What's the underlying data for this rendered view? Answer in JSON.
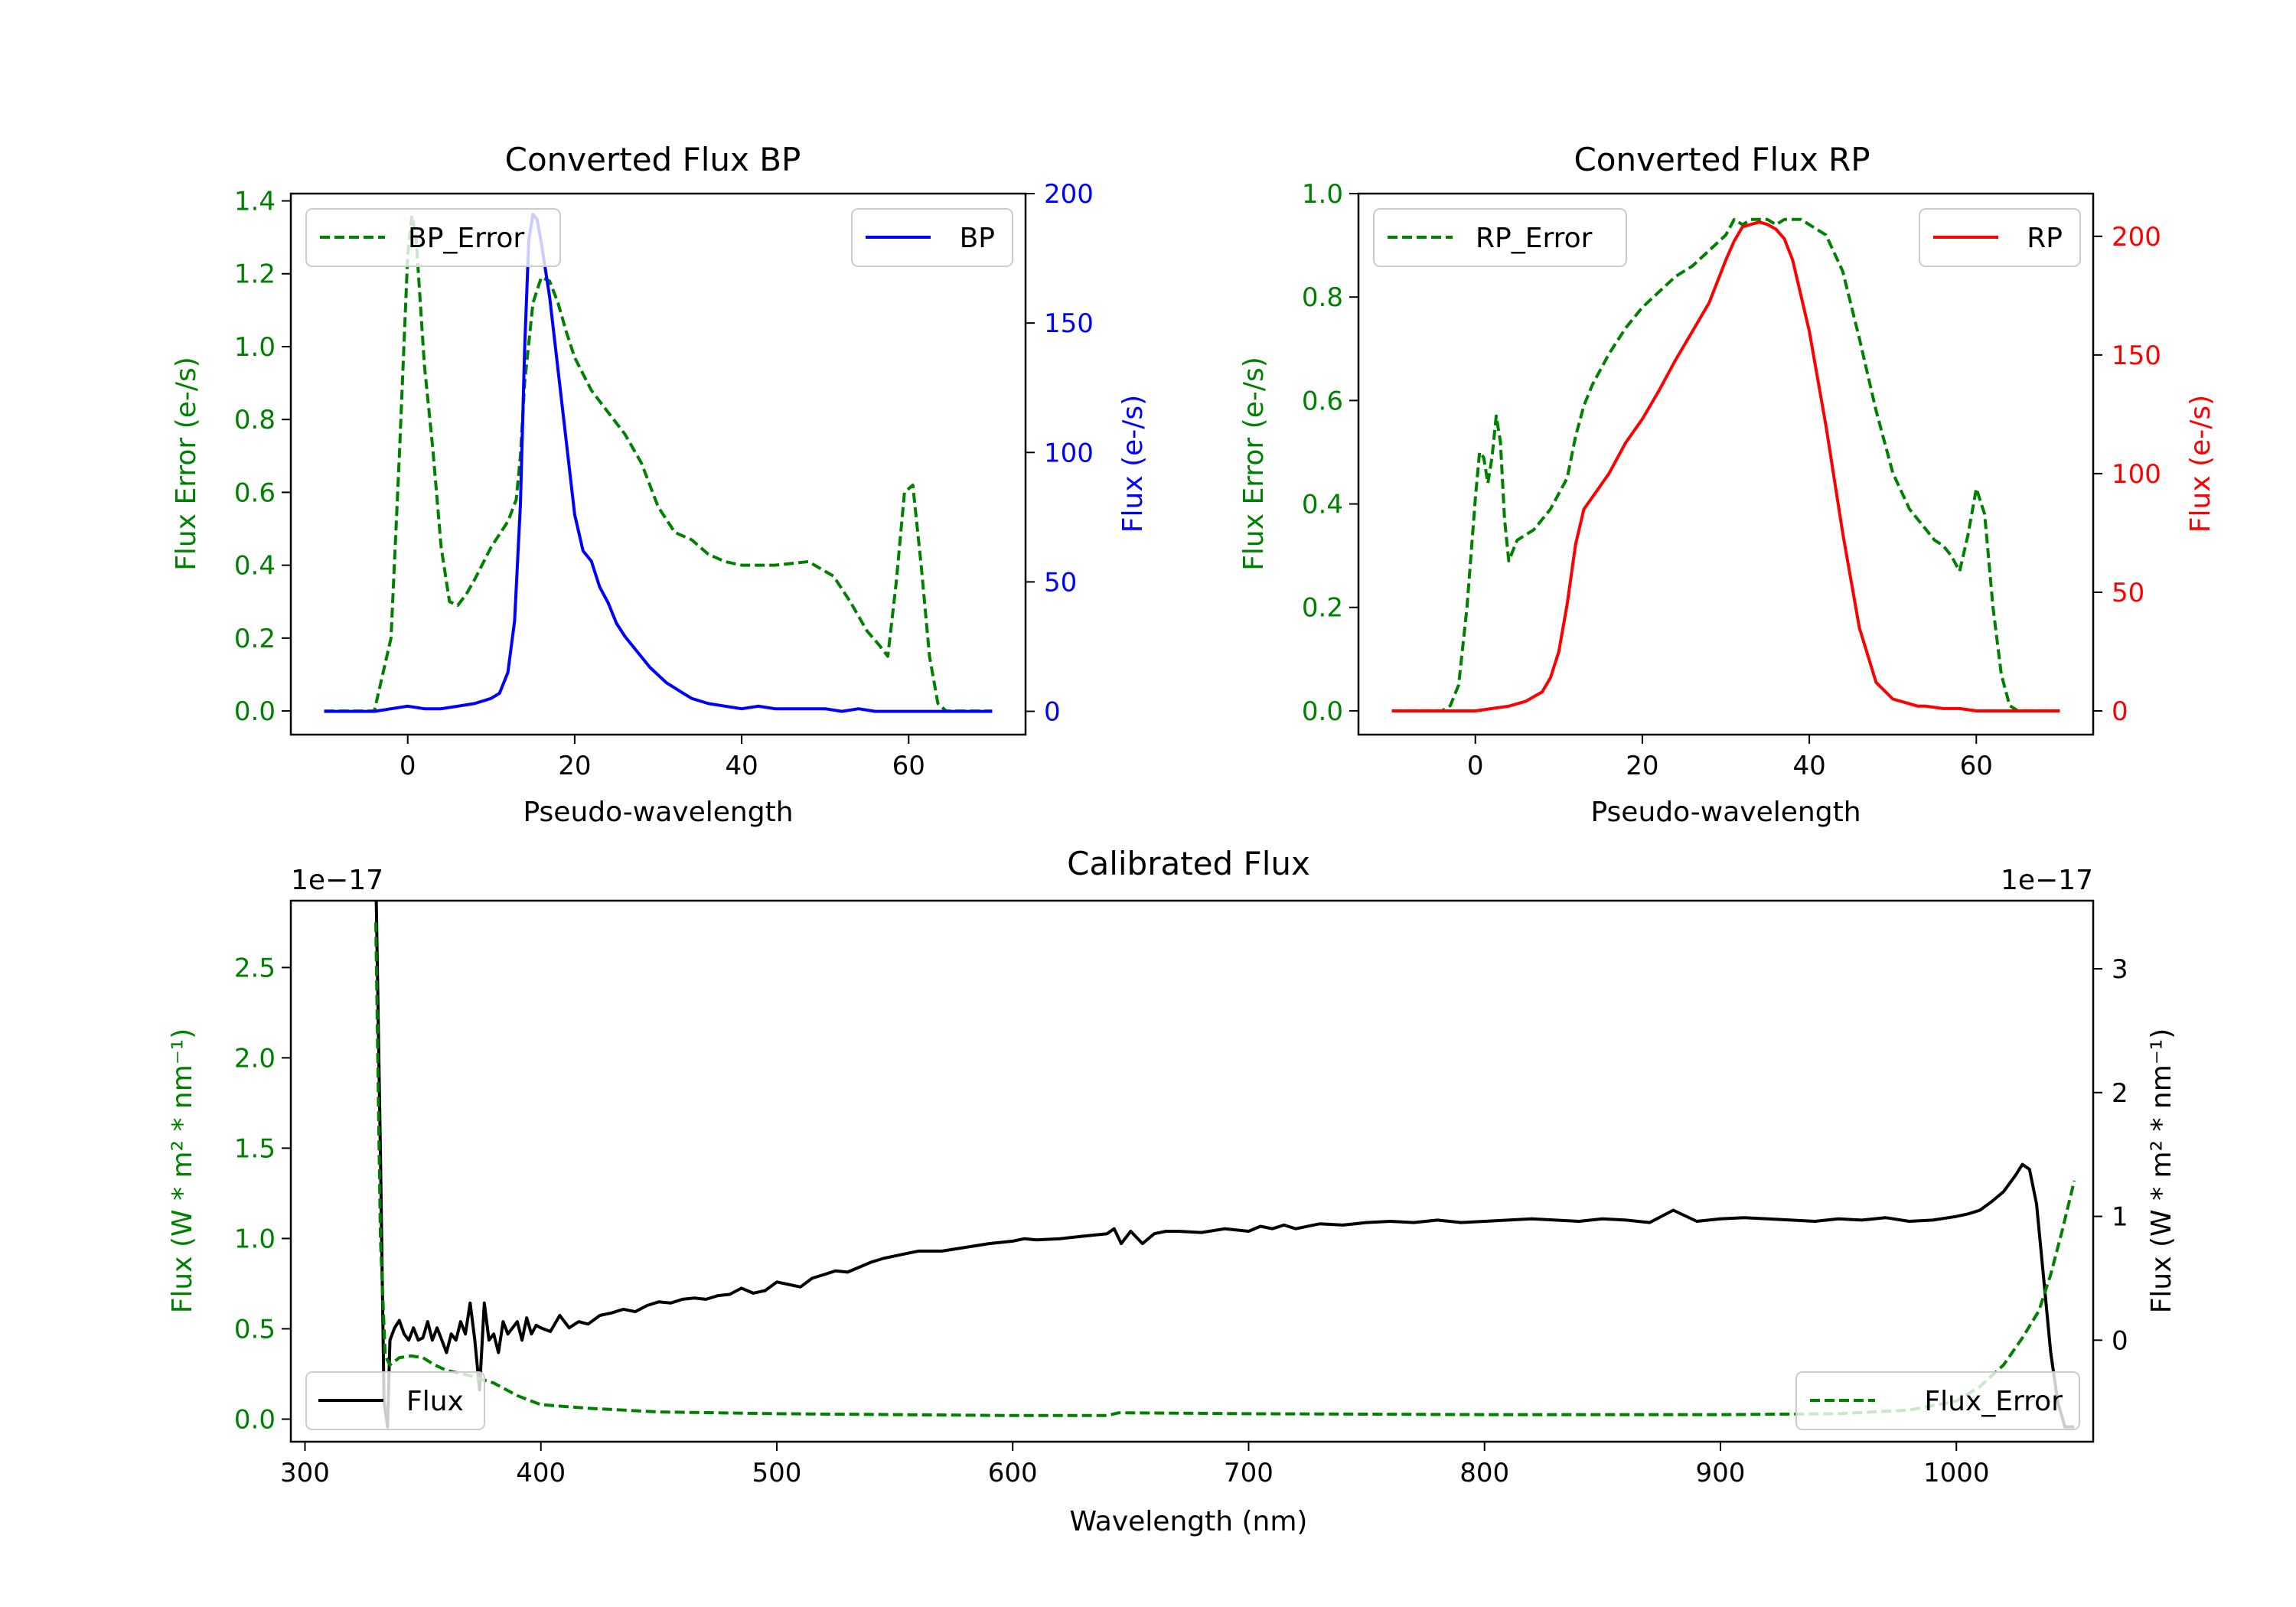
{
  "colors": {
    "green": "#008000",
    "blue": "#0000ff",
    "red": "#ff0000",
    "black": "#000000",
    "frame": "#000000",
    "legend_edge": "#cccccc"
  },
  "chart_data": [
    {
      "id": "bp",
      "type": "line",
      "title": "Converted Flux BP",
      "xlabel": "Pseudo-wavelength",
      "ylabel_left": "Flux Error (e-/s)",
      "ylabel_right": "Flux (e-/s)",
      "xlim": [
        -14,
        74
      ],
      "ylim_left": [
        -0.065,
        1.42
      ],
      "ylim_right": [
        -9,
        200
      ],
      "xticks": [
        0,
        20,
        40,
        60
      ],
      "yticks_left": [
        0.0,
        0.2,
        0.4,
        0.6,
        0.8,
        1.0,
        1.2,
        1.4
      ],
      "yticks_right": [
        0,
        50,
        100,
        150,
        200
      ],
      "legend_left": "BP_Error",
      "legend_right": "BP",
      "series": [
        {
          "name": "BP_Error",
          "axis": "left",
          "style": "dashed",
          "color": "green",
          "x": [
            -10,
            -4,
            -2,
            -1,
            0,
            0.5,
            1,
            2,
            3,
            4,
            5,
            6,
            7,
            8,
            10,
            12,
            13,
            13.5,
            14,
            15,
            16,
            17,
            18,
            19,
            20,
            22,
            24,
            26,
            28,
            30,
            32,
            34,
            36,
            38,
            40,
            44,
            48,
            51,
            53,
            55,
            56.5,
            57.5,
            58.5,
            59.5,
            60.5,
            61.5,
            62.5,
            63.5,
            64.5,
            70
          ],
          "y": [
            0.0,
            0.0,
            0.2,
            0.7,
            1.25,
            1.36,
            1.3,
            0.95,
            0.72,
            0.45,
            0.3,
            0.29,
            0.32,
            0.36,
            0.45,
            0.52,
            0.58,
            0.7,
            0.9,
            1.12,
            1.19,
            1.18,
            1.12,
            1.04,
            0.97,
            0.88,
            0.82,
            0.76,
            0.68,
            0.56,
            0.49,
            0.47,
            0.43,
            0.41,
            0.4,
            0.4,
            0.41,
            0.37,
            0.3,
            0.22,
            0.18,
            0.15,
            0.35,
            0.6,
            0.62,
            0.4,
            0.15,
            0.02,
            0.0,
            0.0
          ]
        },
        {
          "name": "BP",
          "axis": "right",
          "style": "solid",
          "color": "blue",
          "x": [
            -10,
            -4,
            -2,
            0,
            2,
            4,
            6,
            8,
            10,
            11,
            12,
            12.8,
            13.5,
            14,
            14.5,
            15,
            15.5,
            16,
            17,
            18,
            19,
            20,
            21,
            22,
            23,
            24,
            25,
            26,
            27,
            28,
            29,
            30,
            31,
            32,
            33,
            34,
            35,
            36,
            38,
            40,
            42,
            44,
            46,
            48,
            50,
            52,
            54,
            56,
            58,
            60,
            62,
            64,
            66,
            70
          ],
          "y": [
            0,
            0,
            1,
            2,
            1,
            1,
            2,
            3,
            5,
            7,
            15,
            35,
            80,
            140,
            182,
            192,
            190,
            181,
            160,
            132,
            104,
            76,
            62,
            58,
            48,
            42,
            34,
            29,
            25,
            21,
            17,
            14,
            11,
            9,
            7,
            5,
            4,
            3,
            2,
            1,
            2,
            1,
            1,
            1,
            1,
            0,
            1,
            0,
            0,
            0,
            0,
            0,
            0,
            0
          ]
        }
      ]
    },
    {
      "id": "rp",
      "type": "line",
      "title": "Converted Flux RP",
      "xlabel": "Pseudo-wavelength",
      "ylabel_left": "Flux Error (e-/s)",
      "ylabel_right": "Flux (e-/s)",
      "xlim": [
        -14,
        74
      ],
      "ylim_left": [
        -0.046,
        1.0
      ],
      "ylim_right": [
        -10,
        218
      ],
      "xticks": [
        0,
        20,
        40,
        60
      ],
      "yticks_left": [
        0.0,
        0.2,
        0.4,
        0.6,
        0.8,
        1.0
      ],
      "yticks_right": [
        0,
        50,
        100,
        150,
        200
      ],
      "legend_left": "RP_Error",
      "legend_right": "RP",
      "series": [
        {
          "name": "RP_Error",
          "axis": "left",
          "style": "dashed",
          "color": "green",
          "x": [
            -10,
            -4,
            -3,
            -2,
            -1,
            0,
            0.5,
            1,
            1.5,
            2,
            2.5,
            3,
            3.5,
            4,
            5,
            6,
            7,
            8,
            9,
            10,
            11,
            12,
            13,
            14,
            16,
            18,
            20,
            22,
            24,
            26,
            28,
            30,
            31,
            32,
            33,
            34,
            35,
            36,
            37,
            38,
            39,
            40,
            42,
            44,
            46,
            48,
            50,
            52,
            54,
            55,
            56,
            57,
            58,
            59,
            60,
            61,
            62,
            63,
            64,
            65,
            70
          ],
          "y": [
            0.0,
            0.0,
            0.01,
            0.05,
            0.2,
            0.41,
            0.5,
            0.49,
            0.44,
            0.49,
            0.57,
            0.52,
            0.37,
            0.29,
            0.33,
            0.34,
            0.35,
            0.37,
            0.39,
            0.42,
            0.45,
            0.53,
            0.59,
            0.63,
            0.69,
            0.74,
            0.78,
            0.81,
            0.84,
            0.86,
            0.89,
            0.92,
            0.95,
            0.94,
            0.95,
            0.95,
            0.95,
            0.94,
            0.95,
            0.95,
            0.95,
            0.94,
            0.92,
            0.85,
            0.72,
            0.58,
            0.46,
            0.39,
            0.35,
            0.33,
            0.32,
            0.3,
            0.27,
            0.34,
            0.43,
            0.38,
            0.2,
            0.07,
            0.01,
            0.0,
            0.0
          ]
        },
        {
          "name": "RP",
          "axis": "right",
          "style": "solid",
          "color": "red",
          "x": [
            -10,
            -4,
            0,
            2,
            4,
            6,
            8,
            9,
            10,
            11,
            12,
            13,
            14,
            16,
            18,
            20,
            22,
            24,
            26,
            28,
            30,
            31,
            32,
            33,
            34,
            35,
            36,
            37,
            38,
            40,
            42,
            44,
            46,
            48,
            50,
            52,
            53,
            54,
            56,
            58,
            60,
            62,
            64,
            66,
            70
          ],
          "y": [
            0,
            0,
            0,
            1,
            2,
            4,
            8,
            14,
            25,
            45,
            70,
            85,
            90,
            100,
            113,
            123,
            135,
            148,
            160,
            172,
            190,
            198,
            204,
            205,
            206,
            205,
            203,
            199,
            190,
            160,
            120,
            75,
            35,
            12,
            5,
            3,
            2,
            2,
            1,
            1,
            0,
            0,
            0,
            0,
            0
          ]
        }
      ]
    },
    {
      "id": "cal",
      "type": "line",
      "title": "Calibrated Flux",
      "xlabel": "Wavelength (nm)",
      "ylabel_left": "Flux (W * m² * nm⁻¹)",
      "ylabel_right": "Flux (W * m² * nm⁻¹)",
      "offset_left": "1e−17",
      "offset_right": "1e−17",
      "xlim": [
        294,
        1058
      ],
      "ylim_left": [
        -0.125,
        2.87
      ],
      "ylim_right": [
        -0.82,
        3.55
      ],
      "xticks": [
        300,
        400,
        500,
        600,
        700,
        800,
        900,
        1000
      ],
      "yticks_left": [
        0.0,
        0.5,
        1.0,
        1.5,
        2.0,
        2.5
      ],
      "yticks_right": [
        0,
        1,
        2,
        3
      ],
      "legend_left": "Flux",
      "legend_right": "Flux_Error",
      "series": [
        {
          "name": "Flux",
          "axis": "right",
          "style": "solid",
          "color": "black",
          "x": [
            330,
            332,
            333.5,
            335,
            336,
            338,
            340,
            342,
            344,
            346,
            348,
            350,
            352,
            354,
            356,
            358,
            360,
            362,
            364,
            366,
            368,
            370,
            372,
            374,
            376,
            378,
            380,
            382,
            384,
            386,
            388,
            390,
            392,
            394,
            396,
            398,
            400,
            404,
            408,
            412,
            416,
            420,
            425,
            430,
            435,
            440,
            445,
            450,
            455,
            460,
            465,
            470,
            475,
            480,
            485,
            490,
            495,
            500,
            505,
            510,
            515,
            520,
            525,
            530,
            535,
            540,
            545,
            550,
            555,
            560,
            570,
            580,
            590,
            600,
            605,
            610,
            620,
            630,
            640,
            643,
            646,
            650,
            655,
            660,
            665,
            670,
            680,
            690,
            700,
            705,
            710,
            715,
            720,
            730,
            740,
            750,
            760,
            770,
            780,
            790,
            800,
            810,
            820,
            830,
            840,
            850,
            860,
            870,
            880,
            890,
            900,
            910,
            920,
            930,
            940,
            950,
            960,
            970,
            980,
            990,
            1000,
            1005,
            1010,
            1015,
            1020,
            1025,
            1028,
            1031,
            1034,
            1037,
            1040,
            1043,
            1046,
            1048,
            1050
          ],
          "y": [
            3.78,
            1.5,
            -0.5,
            -0.7,
            0.0,
            0.1,
            0.16,
            0.05,
            0.0,
            0.1,
            0.0,
            0.02,
            0.15,
            0.0,
            0.1,
            0.0,
            -0.1,
            0.05,
            0.0,
            0.15,
            0.05,
            0.3,
            0.0,
            -0.4,
            0.3,
            0.0,
            0.05,
            -0.1,
            0.15,
            0.05,
            0.1,
            0.15,
            0.0,
            0.18,
            0.05,
            0.12,
            0.1,
            0.07,
            0.2,
            0.1,
            0.15,
            0.13,
            0.2,
            0.22,
            0.25,
            0.23,
            0.28,
            0.31,
            0.3,
            0.33,
            0.34,
            0.33,
            0.36,
            0.37,
            0.42,
            0.38,
            0.4,
            0.47,
            0.45,
            0.43,
            0.5,
            0.53,
            0.56,
            0.55,
            0.59,
            0.63,
            0.66,
            0.68,
            0.7,
            0.72,
            0.72,
            0.75,
            0.78,
            0.8,
            0.82,
            0.81,
            0.82,
            0.84,
            0.86,
            0.9,
            0.78,
            0.88,
            0.78,
            0.86,
            0.88,
            0.88,
            0.87,
            0.9,
            0.88,
            0.92,
            0.9,
            0.93,
            0.9,
            0.94,
            0.93,
            0.95,
            0.96,
            0.95,
            0.97,
            0.95,
            0.96,
            0.97,
            0.98,
            0.97,
            0.96,
            0.98,
            0.97,
            0.95,
            1.05,
            0.96,
            0.98,
            0.99,
            0.98,
            0.97,
            0.96,
            0.98,
            0.97,
            0.99,
            0.96,
            0.97,
            1.0,
            1.02,
            1.05,
            1.12,
            1.2,
            1.33,
            1.42,
            1.38,
            1.1,
            0.5,
            -0.1,
            -0.5,
            -0.7,
            -0.7,
            -0.7
          ]
        },
        {
          "name": "Flux_Error",
          "axis": "left",
          "style": "dashed",
          "color": "green",
          "x": [
            330,
            332,
            334,
            336,
            338,
            340,
            345,
            350,
            355,
            360,
            370,
            380,
            390,
            400,
            420,
            450,
            500,
            550,
            600,
            640,
            645,
            700,
            800,
            900,
            950,
            980,
            1000,
            1010,
            1020,
            1028,
            1035,
            1040,
            1045,
            1050
          ],
          "y": [
            2.75,
            1.0,
            0.35,
            0.3,
            0.32,
            0.34,
            0.35,
            0.34,
            0.3,
            0.27,
            0.24,
            0.2,
            0.13,
            0.08,
            0.06,
            0.04,
            0.03,
            0.025,
            0.02,
            0.02,
            0.035,
            0.03,
            0.025,
            0.025,
            0.03,
            0.05,
            0.1,
            0.18,
            0.3,
            0.45,
            0.6,
            0.8,
            1.05,
            1.32
          ]
        }
      ]
    }
  ]
}
